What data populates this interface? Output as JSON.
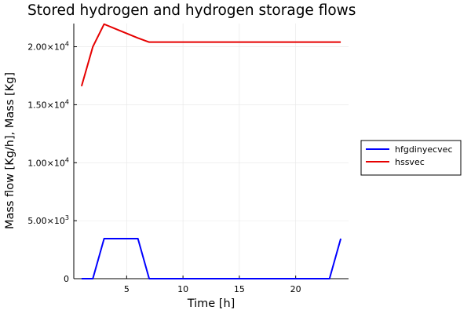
{
  "chart_data": {
    "type": "line",
    "title": "Stored hydrogen and hydrogen storage flows",
    "xlabel": "Time [h]",
    "ylabel": "Mass flow [Kg/h], Mass [Kg]",
    "xlim": [
      0.31,
      24.69
    ],
    "ylim": [
      0,
      22000
    ],
    "xticks": [
      5,
      10,
      15,
      20
    ],
    "xtick_labels": [
      "5",
      "10",
      "15",
      "20"
    ],
    "yticks": [
      0,
      5000,
      10000,
      15000,
      20000
    ],
    "ytick_labels": [
      {
        "mantissa": "0",
        "exponent": ""
      },
      {
        "mantissa": "5.00×10",
        "exponent": "3"
      },
      {
        "mantissa": "1.00×10",
        "exponent": "4"
      },
      {
        "mantissa": "1.50×10",
        "exponent": "4"
      },
      {
        "mantissa": "2.00×10",
        "exponent": "4"
      }
    ],
    "grid": true,
    "legend_position": "outer-right",
    "x": [
      1,
      2,
      3,
      4,
      5,
      6,
      7,
      8,
      9,
      10,
      11,
      12,
      13,
      14,
      15,
      16,
      17,
      18,
      19,
      20,
      21,
      22,
      23,
      24
    ],
    "series": [
      {
        "name": "hfgdinyecvec",
        "color": "#0000ff",
        "values": [
          0,
          0,
          3450,
          3450,
          3450,
          3450,
          0,
          0,
          0,
          0,
          0,
          0,
          0,
          0,
          0,
          0,
          0,
          0,
          0,
          0,
          0,
          0,
          0,
          3450
        ]
      },
      {
        "name": "hssvec",
        "color": "#e60000",
        "values": [
          16600,
          20000,
          21950,
          21550,
          21150,
          20750,
          20400,
          20400,
          20400,
          20400,
          20400,
          20400,
          20400,
          20400,
          20400,
          20400,
          20400,
          20400,
          20400,
          20400,
          20400,
          20400,
          20400,
          20400
        ]
      }
    ]
  }
}
